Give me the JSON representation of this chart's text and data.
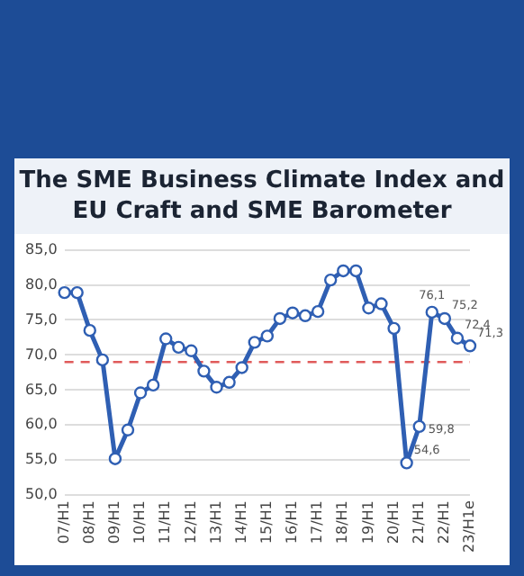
{
  "chart_data": {
    "type": "line",
    "title": "The SME Business Climate Index and EU Craft and SME Barometer",
    "categories": [
      "07/H1",
      null,
      "08/H1",
      null,
      "09/H1",
      null,
      "10/H1",
      null,
      "11/H1",
      null,
      "12/H1",
      null,
      "13/H1",
      null,
      "14/H1",
      null,
      "15/H1",
      null,
      "16/H1",
      null,
      "17/H1",
      null,
      "18/H1",
      null,
      "19/H1",
      null,
      "20/H1",
      null,
      "21/H1",
      null,
      "22/H1",
      null,
      "23/H1e"
    ],
    "series": [
      {
        "color": "#2f5fb3",
        "values": [
          78.9,
          78.9,
          73.5,
          69.3,
          55.2,
          59.3,
          64.6,
          65.7,
          72.3,
          71.1,
          70.6,
          67.7,
          65.4,
          66.1,
          68.2,
          71.8,
          72.7,
          75.2,
          76.0,
          75.6,
          76.2,
          80.7,
          82.0,
          82.0,
          76.7,
          77.3,
          73.8,
          54.6,
          59.8,
          76.1,
          75.2,
          72.4,
          71.3
        ],
        "value_labels": [
          null,
          null,
          null,
          null,
          null,
          null,
          null,
          null,
          null,
          null,
          null,
          null,
          null,
          null,
          null,
          null,
          null,
          null,
          null,
          null,
          null,
          null,
          null,
          null,
          null,
          null,
          null,
          "54,6",
          "59,8",
          "76,1",
          "75,2",
          "72,4",
          "71,3"
        ]
      }
    ],
    "ylim": [
      50,
      85
    ],
    "yticks": [
      {
        "value": 50,
        "label": "50,0"
      },
      {
        "value": 55,
        "label": "55,0"
      },
      {
        "value": 60,
        "label": "60,0"
      },
      {
        "value": 65,
        "label": "65,0"
      },
      {
        "value": 70,
        "label": "70,0"
      },
      {
        "value": 75,
        "label": "75,0"
      },
      {
        "value": 80,
        "label": "80,0"
      },
      {
        "value": 85,
        "label": "85,0"
      }
    ],
    "ref_lines": [
      {
        "axis": "y",
        "value": 69,
        "color": "#e05a5a",
        "line_style": "dashed"
      }
    ],
    "grid": "y",
    "marker": "circle",
    "line_style": "solid"
  }
}
